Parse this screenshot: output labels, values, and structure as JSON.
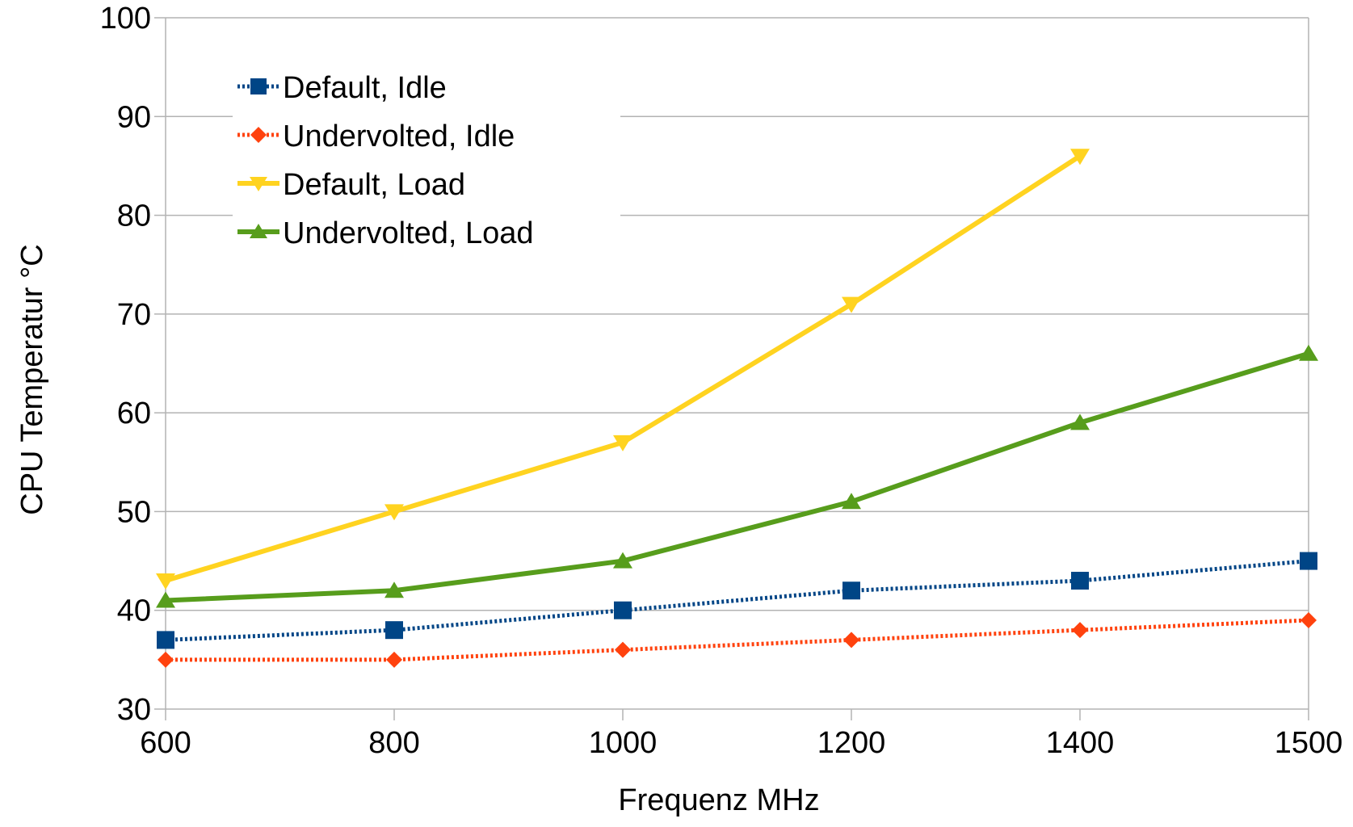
{
  "chart_data": {
    "type": "line",
    "title": "",
    "xlabel": "Frequenz MHz",
    "ylabel": "CPU Temperatur °C",
    "categories": [
      "600",
      "800",
      "1000",
      "1200",
      "1400",
      "1500"
    ],
    "ylim": [
      30,
      100
    ],
    "yticks": [
      "30",
      "40",
      "50",
      "60",
      "70",
      "80",
      "90",
      "100"
    ],
    "grid": "horizontal",
    "legend_position": "top-left",
    "series": [
      {
        "name": "Default, Idle",
        "values": [
          37,
          38,
          40,
          42,
          43,
          45
        ],
        "color": "#004586",
        "marker": "square",
        "dash": "dotted"
      },
      {
        "name": "Undervolted, Idle",
        "values": [
          35,
          35,
          36,
          37,
          38,
          39
        ],
        "color": "#ff420e",
        "marker": "diamond",
        "dash": "dotted"
      },
      {
        "name": "Default, Load",
        "values": [
          43,
          50,
          57,
          71,
          86,
          null
        ],
        "color": "#ffd320",
        "marker": "triangle-down",
        "dash": "solid"
      },
      {
        "name": "Undervolted, Load",
        "values": [
          41,
          42,
          45,
          51,
          59,
          66
        ],
        "color": "#579d1c",
        "marker": "triangle-up",
        "dash": "solid"
      }
    ]
  }
}
